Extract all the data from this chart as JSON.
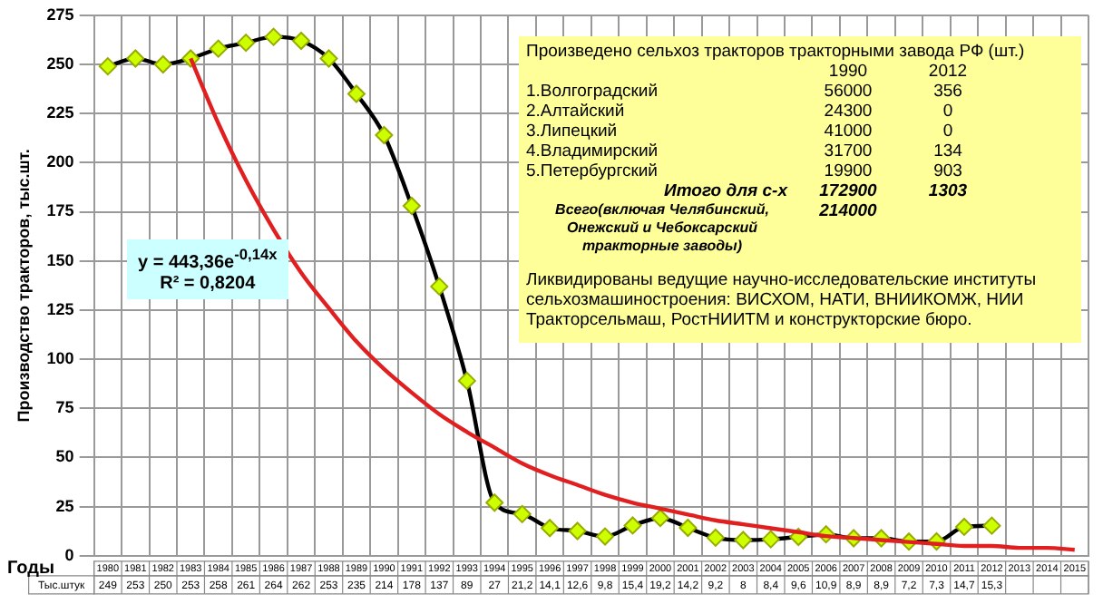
{
  "chart_data": {
    "type": "line",
    "xlabel": "Годы",
    "ylabel": "Производство тракторов, тыс.шт.",
    "categories": [
      "1980",
      "1981",
      "1982",
      "1983",
      "1984",
      "1985",
      "1986",
      "1987",
      "1988",
      "1989",
      "1990",
      "1991",
      "1992",
      "1993",
      "1994",
      "1995",
      "1996",
      "1997",
      "1998",
      "1999",
      "2000",
      "2001",
      "2002",
      "2003",
      "2004",
      "2005",
      "2006",
      "2007",
      "2008",
      "2009",
      "2010",
      "2011",
      "2012",
      "2013",
      "2014",
      "2015"
    ],
    "series": [
      {
        "color": "#000000",
        "marker": "diamond",
        "line_style": "solid",
        "values": [
          249,
          253,
          250,
          253,
          258,
          261,
          264,
          262,
          253,
          235,
          214,
          178,
          137,
          89,
          27,
          21.2,
          14.1,
          12.6,
          9.8,
          15.4,
          19.2,
          14.2,
          9.2,
          8,
          8.4,
          9.6,
          10.9,
          8.9,
          8.9,
          7.2,
          7.3,
          14.7,
          15.3,
          null,
          null,
          null
        ],
        "value_labels": [
          "249",
          "253",
          "250",
          "253",
          "258",
          "261",
          "264",
          "262",
          "253",
          "235",
          "214",
          "178",
          "137",
          "89",
          "27",
          "21,2",
          "14,1",
          "12,6",
          "9,8",
          "15,4",
          "19,2",
          "14,2",
          "9,2",
          "8",
          "8,4",
          "9,6",
          "10,9",
          "8,9",
          "8,9",
          "7,2",
          "7,3",
          "14,7",
          "15,3",
          null,
          null,
          null
        ]
      },
      {
        "color": "#e02020",
        "marker": "none",
        "line_style": "solid",
        "values": [
          null,
          null,
          null,
          253,
          220,
          191,
          166,
          144,
          126,
          109,
          95,
          83,
          72,
          63,
          55,
          47,
          41,
          36,
          31,
          27,
          24,
          21,
          18,
          16,
          14,
          12,
          10,
          9,
          8,
          7,
          6,
          5,
          5,
          4,
          4,
          3
        ]
      }
    ],
    "ylim": [
      0,
      275
    ],
    "yticks": [
      0,
      25,
      50,
      75,
      100,
      125,
      150,
      175,
      200,
      225,
      250,
      275
    ],
    "grid": true,
    "legend": false,
    "annotations": [
      "y = 443,36e$^{-0,14x}$",
      "R² = 0,8204",
      "Тыс.штук",
      "Произведено сельхоз тракторов тракторными завода РФ (шт.)",
      "1990",
      "2012",
      "1.Волгоградский",
      "56000",
      "356",
      "2.Алтайский",
      "24300",
      "0",
      "3.Липецкий",
      "41000",
      "0",
      "4.Владимирский",
      "31700",
      "134",
      "5.Петербургский",
      "19900",
      "903",
      "Итого для с-х",
      "172900",
      "1303",
      "Всего(включая Челябинский, Онежский и Чебоксарский тракторные заводы)",
      "214000",
      "Ликвидированы ведущие научно-исследовательские институты сельхозмашиностроения: ВИСХОМ, НАТИ, ВНИИКОМЖ, НИИ Тракторсельмаш, РостНИИТМ и конструкторские бюро."
    ]
  }
}
